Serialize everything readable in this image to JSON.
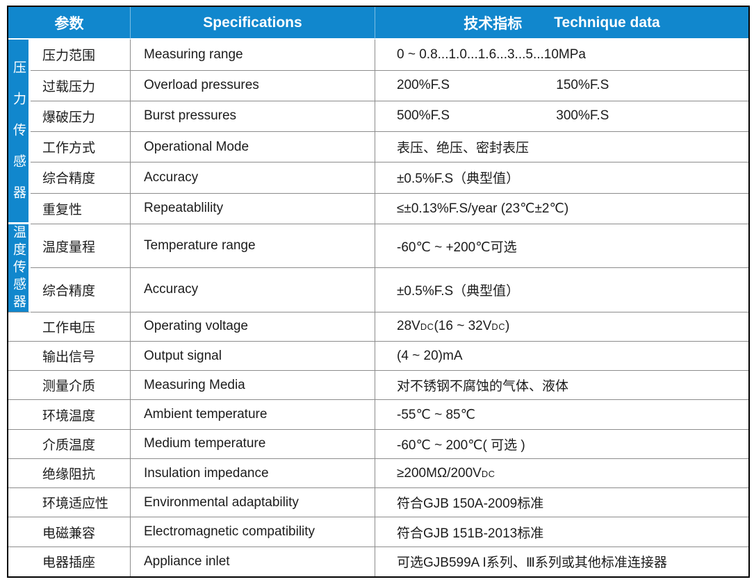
{
  "colors": {
    "accent_blue": "#1187cd",
    "grid_line": "#8c8c8c",
    "outer_border": "#000000",
    "header_text": "#ffffff",
    "body_text": "#1c1c1c"
  },
  "header": {
    "col_param": "参数",
    "col_spec": "Specifications",
    "col_value_cn": "技术指标",
    "col_value_en": "Technique data"
  },
  "sections": {
    "pressure": "压力传感器",
    "temperature": "温度传感器"
  },
  "rows": [
    {
      "param": "压力范围",
      "spec": "Measuring range",
      "value": "0 ~ 0.8...1.0...1.6...3...5...10MPa"
    },
    {
      "param": "过载压力",
      "spec": "Overload pressures",
      "value": "200%F.S",
      "value2": "150%F.S"
    },
    {
      "param": "爆破压力",
      "spec": "Burst pressures",
      "value": "500%F.S",
      "value2": "300%F.S"
    },
    {
      "param": "工作方式",
      "spec": "Operational Mode",
      "value": "表压、绝压、密封表压"
    },
    {
      "param": "综合精度",
      "spec": "Accuracy",
      "value": "±0.5%F.S（典型值）"
    },
    {
      "param": "重复性",
      "spec": "Repeatablility",
      "value": "≤±0.13%F.S/year  (23℃±2℃)"
    },
    {
      "param": "温度量程",
      "spec": "Temperature range",
      "value": "-60℃ ~ +200℃可选"
    },
    {
      "param": "综合精度",
      "spec": "Accuracy",
      "value": "±0.5%F.S（典型值）"
    },
    {
      "param": "工作电压",
      "spec": "Operating voltage",
      "value_html": "28V<small>DC</small>(16 ~ 32V<small>DC</small>)"
    },
    {
      "param": "输出信号",
      "spec": "Output signal",
      "value": "(4 ~ 20)mA"
    },
    {
      "param": "测量介质",
      "spec": "Measuring Media",
      "value": "对不锈钢不腐蚀的气体、液体"
    },
    {
      "param": "环境温度",
      "spec": "Ambient temperature",
      "value": "-55℃ ~ 85℃"
    },
    {
      "param": "介质温度",
      "spec": "Medium temperature",
      "value": "-60℃ ~ 200℃( 可选 )"
    },
    {
      "param": "绝缘阻抗",
      "spec": "Insulation impedance",
      "value_html": "≥200MΩ/200V<small>DC</small>"
    },
    {
      "param": "环境适应性",
      "spec": "Environmental  adaptability",
      "value": "符合GJB 150A-2009标准"
    },
    {
      "param": "电磁兼容",
      "spec": "Electromagnetic compatibility",
      "value": "符合GJB 151B-2013标准"
    },
    {
      "param": "电器插座",
      "spec": "Appliance inlet",
      "value": "可选GJB599A I系列、Ⅲ系列或其他标准连接器"
    }
  ]
}
